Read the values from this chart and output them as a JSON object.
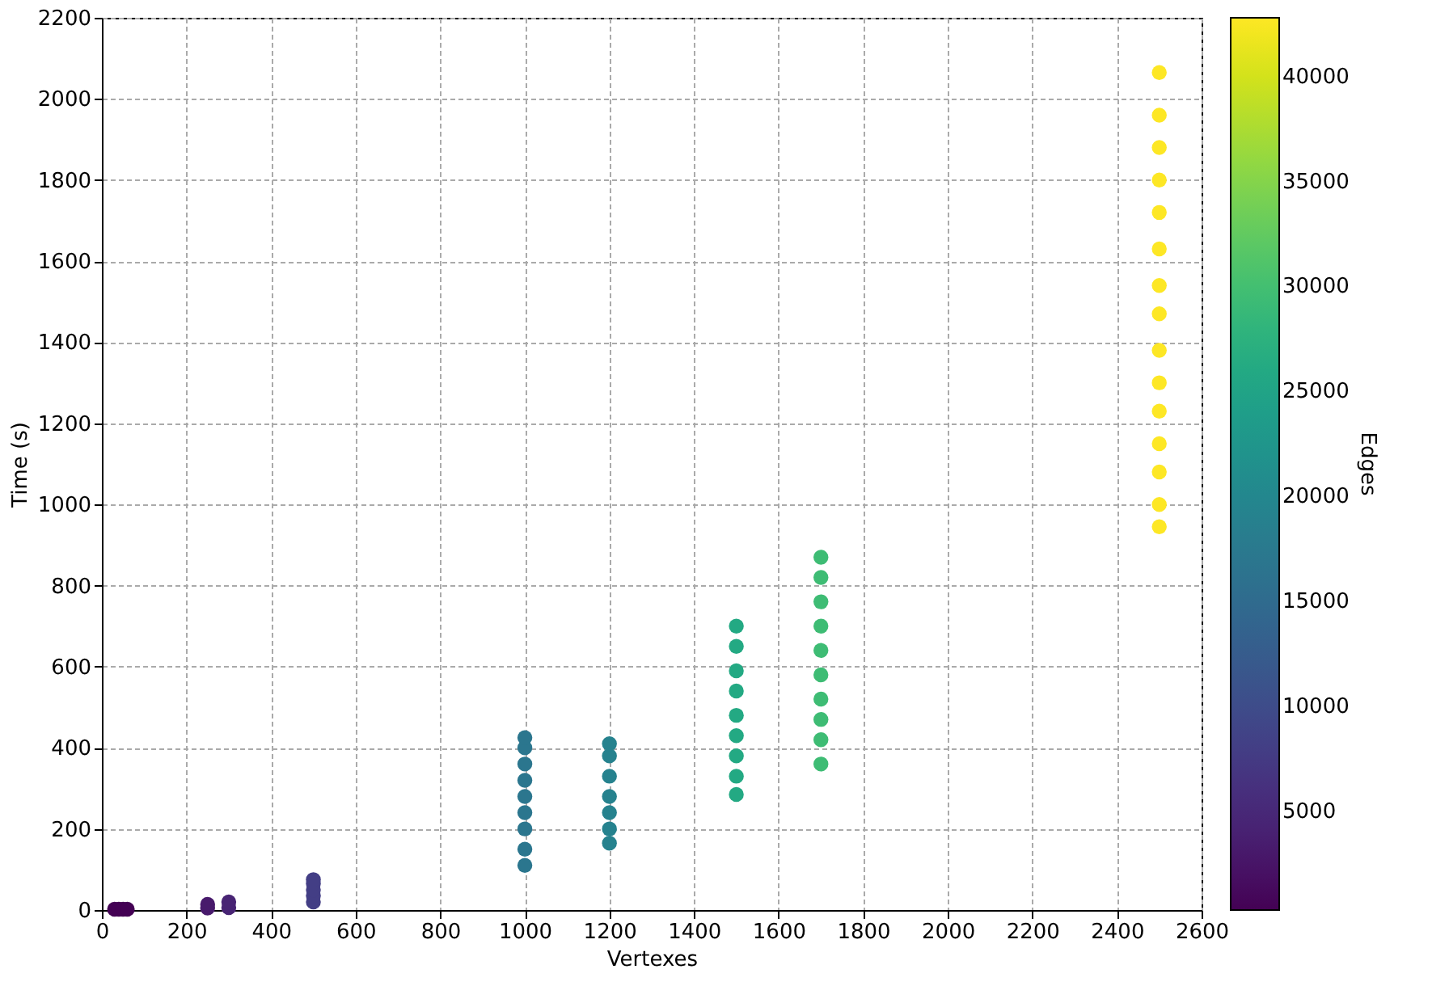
{
  "chart_data": {
    "type": "scatter",
    "xlabel": "Vertexes",
    "ylabel": "Time (s)",
    "clabel": "Edges",
    "xlim": [
      0,
      2600
    ],
    "xticks": [
      0,
      200,
      400,
      600,
      800,
      1000,
      1200,
      1400,
      1600,
      1800,
      2000,
      2200,
      2400,
      2600
    ],
    "ylim": [
      0,
      2200
    ],
    "yticks": [
      0,
      200,
      400,
      600,
      800,
      1000,
      1200,
      1400,
      1600,
      1800,
      2000,
      2200
    ],
    "clim": [
      300,
      42800
    ],
    "cticks": [
      5000,
      10000,
      15000,
      20000,
      25000,
      30000,
      35000,
      40000
    ],
    "grid": true,
    "marker": "circle",
    "x": [
      30,
      40,
      50,
      60,
      250,
      250,
      300,
      300,
      500,
      500,
      500,
      500,
      500,
      1000,
      1000,
      1000,
      1000,
      1000,
      1000,
      1000,
      1000,
      1000,
      1200,
      1200,
      1200,
      1200,
      1200,
      1200,
      1200,
      1500,
      1500,
      1500,
      1500,
      1500,
      1500,
      1500,
      1500,
      1500,
      1700,
      1700,
      1700,
      1700,
      1700,
      1700,
      1700,
      1700,
      1700,
      1700,
      2500,
      2500,
      2500,
      2500,
      2500,
      2500,
      2500,
      2500,
      2500,
      2500,
      2500,
      2500,
      2500,
      2500,
      2500
    ],
    "values": [
      2,
      2,
      2,
      2,
      5,
      14,
      6,
      20,
      20,
      35,
      50,
      65,
      75,
      110,
      150,
      200,
      240,
      280,
      320,
      360,
      400,
      425,
      165,
      200,
      240,
      280,
      330,
      380,
      410,
      285,
      330,
      380,
      430,
      480,
      540,
      590,
      650,
      700,
      360,
      420,
      470,
      520,
      580,
      640,
      700,
      760,
      820,
      870,
      945,
      1000,
      1080,
      1150,
      1230,
      1300,
      1380,
      1470,
      1540,
      1630,
      1720,
      1800,
      1880,
      1960,
      2065
    ],
    "cvalues": [
      300,
      300,
      300,
      300,
      3100,
      3100,
      4400,
      4400,
      8000,
      8000,
      8000,
      8000,
      8000,
      17000,
      17000,
      17000,
      17000,
      17000,
      17000,
      17000,
      17000,
      17000,
      19000,
      19000,
      19000,
      19000,
      19000,
      19000,
      19000,
      26000,
      26000,
      26000,
      26000,
      26000,
      26000,
      26000,
      26000,
      26000,
      29500,
      29500,
      29500,
      29500,
      29500,
      29500,
      29500,
      29500,
      29500,
      29500,
      42800,
      42800,
      42800,
      42800,
      42800,
      42800,
      42800,
      42800,
      42800,
      42800,
      42800,
      42800,
      42800,
      42800,
      42800
    ]
  }
}
